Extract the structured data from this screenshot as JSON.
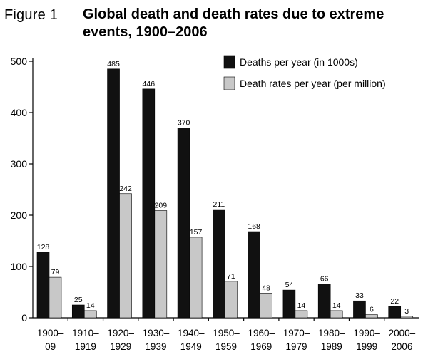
{
  "figure": {
    "label": "Figure 1",
    "title": "Global death and death rates due to extreme events, 1900–2006"
  },
  "colors": {
    "series_dark": "#111111",
    "series_light": "#c8c8c8",
    "axis": "#000000"
  },
  "chart_data": {
    "type": "bar",
    "title": "Global death and death rates due to extreme events, 1900–2006",
    "xlabel": "",
    "ylabel": "",
    "ylim": [
      0,
      500
    ],
    "yticks": [
      0,
      100,
      200,
      300,
      400,
      500
    ],
    "grid": false,
    "legend": "top-right",
    "categories": [
      [
        "1900–",
        "09"
      ],
      [
        "1910–",
        "1919"
      ],
      [
        "1920–",
        "1929"
      ],
      [
        "1930–",
        "1939"
      ],
      [
        "1940–",
        "1949"
      ],
      [
        "1950–",
        "1959"
      ],
      [
        "1960–",
        "1969"
      ],
      [
        "1970–",
        "1979"
      ],
      [
        "1980–",
        "1989"
      ],
      [
        "1990–",
        "1999"
      ],
      [
        "2000–",
        "2006"
      ]
    ],
    "series": [
      {
        "name": "Deaths per year (in 1000s)",
        "color": "#111111",
        "values": [
          128,
          25,
          485,
          446,
          370,
          211,
          168,
          54,
          66,
          33,
          22
        ]
      },
      {
        "name": "Death rates per year (per million)",
        "color": "#c8c8c8",
        "values": [
          79,
          14,
          242,
          209,
          157,
          71,
          48,
          14,
          14,
          6,
          3
        ]
      }
    ]
  }
}
